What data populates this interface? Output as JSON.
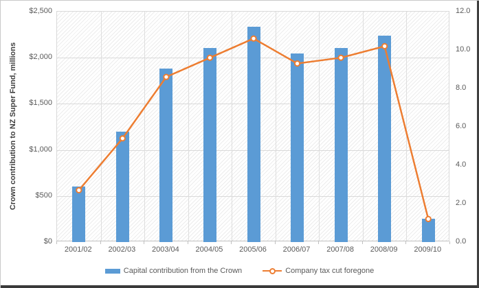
{
  "chart_data": {
    "type": "combo-bar-line",
    "categories": [
      "2001/02",
      "2002/03",
      "2003/04",
      "2004/05",
      "2005/06",
      "2006/07",
      "2007/08",
      "2008/09",
      "2009/10"
    ],
    "series": [
      {
        "name": "Capital contribution from the Crown",
        "type": "bar",
        "axis": "left",
        "color": "#5B9BD5",
        "values": [
          600,
          1200,
          1879,
          2107,
          2337,
          2049,
          2103,
          2243,
          250
        ]
      },
      {
        "name": "Company tax cut foregone",
        "type": "line",
        "axis": "right",
        "color": "#ED7D31",
        "marker": "open-circle",
        "marker_fill": "#ffffff",
        "values": [
          2.7,
          5.4,
          8.6,
          9.6,
          10.6,
          9.3,
          9.6,
          10.2,
          1.2
        ]
      }
    ],
    "left_axis": {
      "title": "Crown contribution to NZ Super Fund, millions",
      "min": 0,
      "max": 2500,
      "step": 500,
      "tick_values": [
        0,
        500,
        1000,
        1500,
        2000,
        2500
      ],
      "tick_labels": [
        "$0",
        "$500",
        "$1,000",
        "$1,500",
        "$2,000",
        "$2,500"
      ]
    },
    "right_axis": {
      "min": 0,
      "max": 12,
      "step": 2,
      "tick_values": [
        0,
        2,
        4,
        6,
        8,
        10,
        12
      ],
      "tick_labels": [
        "0.0",
        "2.0",
        "4.0",
        "6.0",
        "8.0",
        "10.0",
        "12.0"
      ]
    },
    "grid": {
      "horizontal": true,
      "vertical_category_boundaries": true
    },
    "plot_background": "light diagonal hatch",
    "legend_position": "bottom",
    "colors": {
      "bar": "#5B9BD5",
      "line": "#ED7D31",
      "gridline": "#d9d9d9",
      "axis_text": "#595959"
    }
  }
}
